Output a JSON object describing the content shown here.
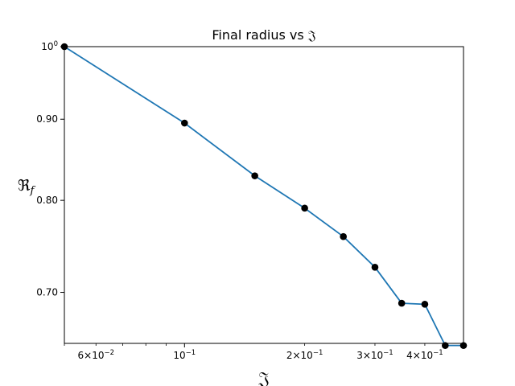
{
  "chart_data": {
    "type": "line",
    "title": "Final radius vs 𝔍",
    "xlabel": "𝔍",
    "ylabel_main": "ℜ",
    "ylabel_sub": "f",
    "x_scale": "log",
    "y_scale": "log",
    "xlim": [
      0.05,
      0.5
    ],
    "ylim": [
      0.65,
      1.0
    ],
    "grid": false,
    "line_color": "#1f77b4",
    "marker_color": "#000000",
    "x_ticks": [
      {
        "value": 0.06,
        "mantissa": "6",
        "exp": "−2"
      },
      {
        "value": 0.1,
        "mantissa": "",
        "exp": "−1"
      },
      {
        "value": 0.2,
        "mantissa": "2",
        "exp": "−1"
      },
      {
        "value": 0.3,
        "mantissa": "3",
        "exp": "−1"
      },
      {
        "value": 0.4,
        "mantissa": "4",
        "exp": "−1"
      }
    ],
    "y_ticks": [
      {
        "value": 1.0,
        "label": "10",
        "exp": "0"
      },
      {
        "value": 0.9,
        "label": "0.90",
        "exp": ""
      },
      {
        "value": 0.8,
        "label": "0.80",
        "exp": ""
      },
      {
        "value": 0.7,
        "label": "0.70",
        "exp": ""
      }
    ],
    "points": [
      {
        "x": 0.05,
        "y": 1.0
      },
      {
        "x": 0.1,
        "y": 0.895
      },
      {
        "x": 0.15,
        "y": 0.829
      },
      {
        "x": 0.2,
        "y": 0.791
      },
      {
        "x": 0.25,
        "y": 0.759
      },
      {
        "x": 0.3,
        "y": 0.726
      },
      {
        "x": 0.35,
        "y": 0.689
      },
      {
        "x": 0.4,
        "y": 0.688
      },
      {
        "x": 0.45,
        "y": 0.648
      },
      {
        "x": 0.5,
        "y": 0.648
      }
    ]
  }
}
